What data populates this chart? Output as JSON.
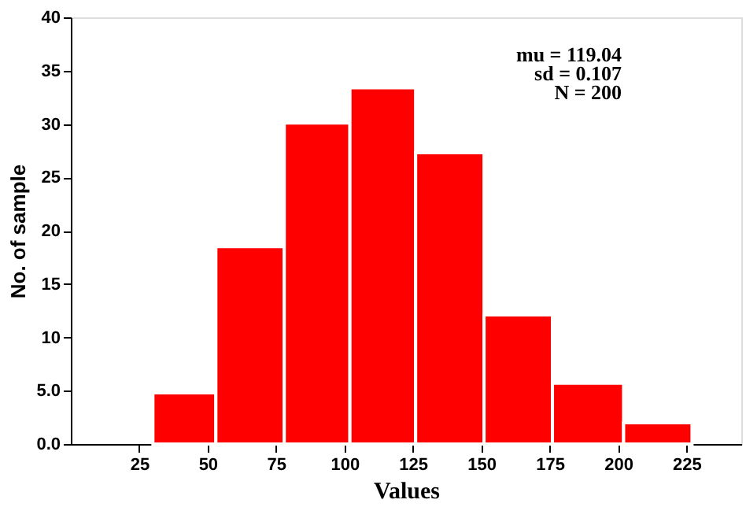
{
  "chart_data": {
    "type": "histogram",
    "xlabel": "Values",
    "ylabel": "No. of sample",
    "bins": [
      30,
      53,
      78,
      102,
      126,
      151,
      176,
      202,
      227
    ],
    "values": [
      4.8,
      18.5,
      30.1,
      33.4,
      27.3,
      12.1,
      5.7,
      2.0
    ],
    "color": "#ff0000",
    "xlim": [
      0,
      245
    ],
    "xticks": [
      25,
      50,
      75,
      100,
      125,
      150,
      175,
      200,
      225
    ],
    "ylim": [
      0,
      40
    ],
    "yticks": [
      {
        "value": 0,
        "label": "0.0"
      },
      {
        "value": 5,
        "label": "5.0"
      },
      10,
      15,
      20,
      25,
      30,
      35,
      40
    ],
    "grid": false,
    "annotations": [
      "mu = 119.04",
      "sd =  0.107",
      "N = 200"
    ]
  }
}
